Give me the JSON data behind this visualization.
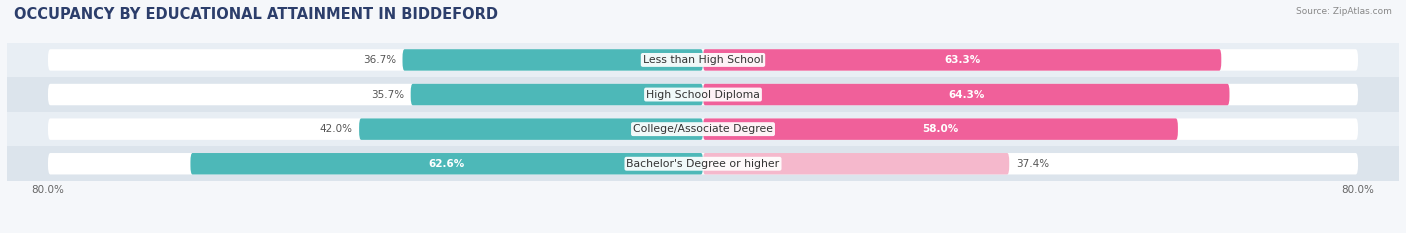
{
  "title": "OCCUPANCY BY EDUCATIONAL ATTAINMENT IN BIDDEFORD",
  "source": "Source: ZipAtlas.com",
  "categories": [
    "Less than High School",
    "High School Diploma",
    "College/Associate Degree",
    "Bachelor's Degree or higher"
  ],
  "owner_values": [
    36.7,
    35.7,
    42.0,
    62.6
  ],
  "renter_values": [
    63.3,
    64.3,
    58.0,
    37.4
  ],
  "owner_color": "#4db8b8",
  "renter_colors": [
    "#f0609a",
    "#f0609a",
    "#f0609a",
    "#f5b8cc"
  ],
  "xlim_left": -80.0,
  "xlim_right": 80.0,
  "bar_height": 0.62,
  "row_bg_color": "#e8eef4",
  "row_stripe_color": "#dce4ec",
  "white_bg": "#f5f7fa",
  "title_color": "#2c3e6b",
  "title_fontsize": 10.5,
  "label_fontsize": 7.8,
  "value_fontsize": 7.5,
  "tick_fontsize": 7.5,
  "source_fontsize": 6.5,
  "legend_fontsize": 7.8
}
